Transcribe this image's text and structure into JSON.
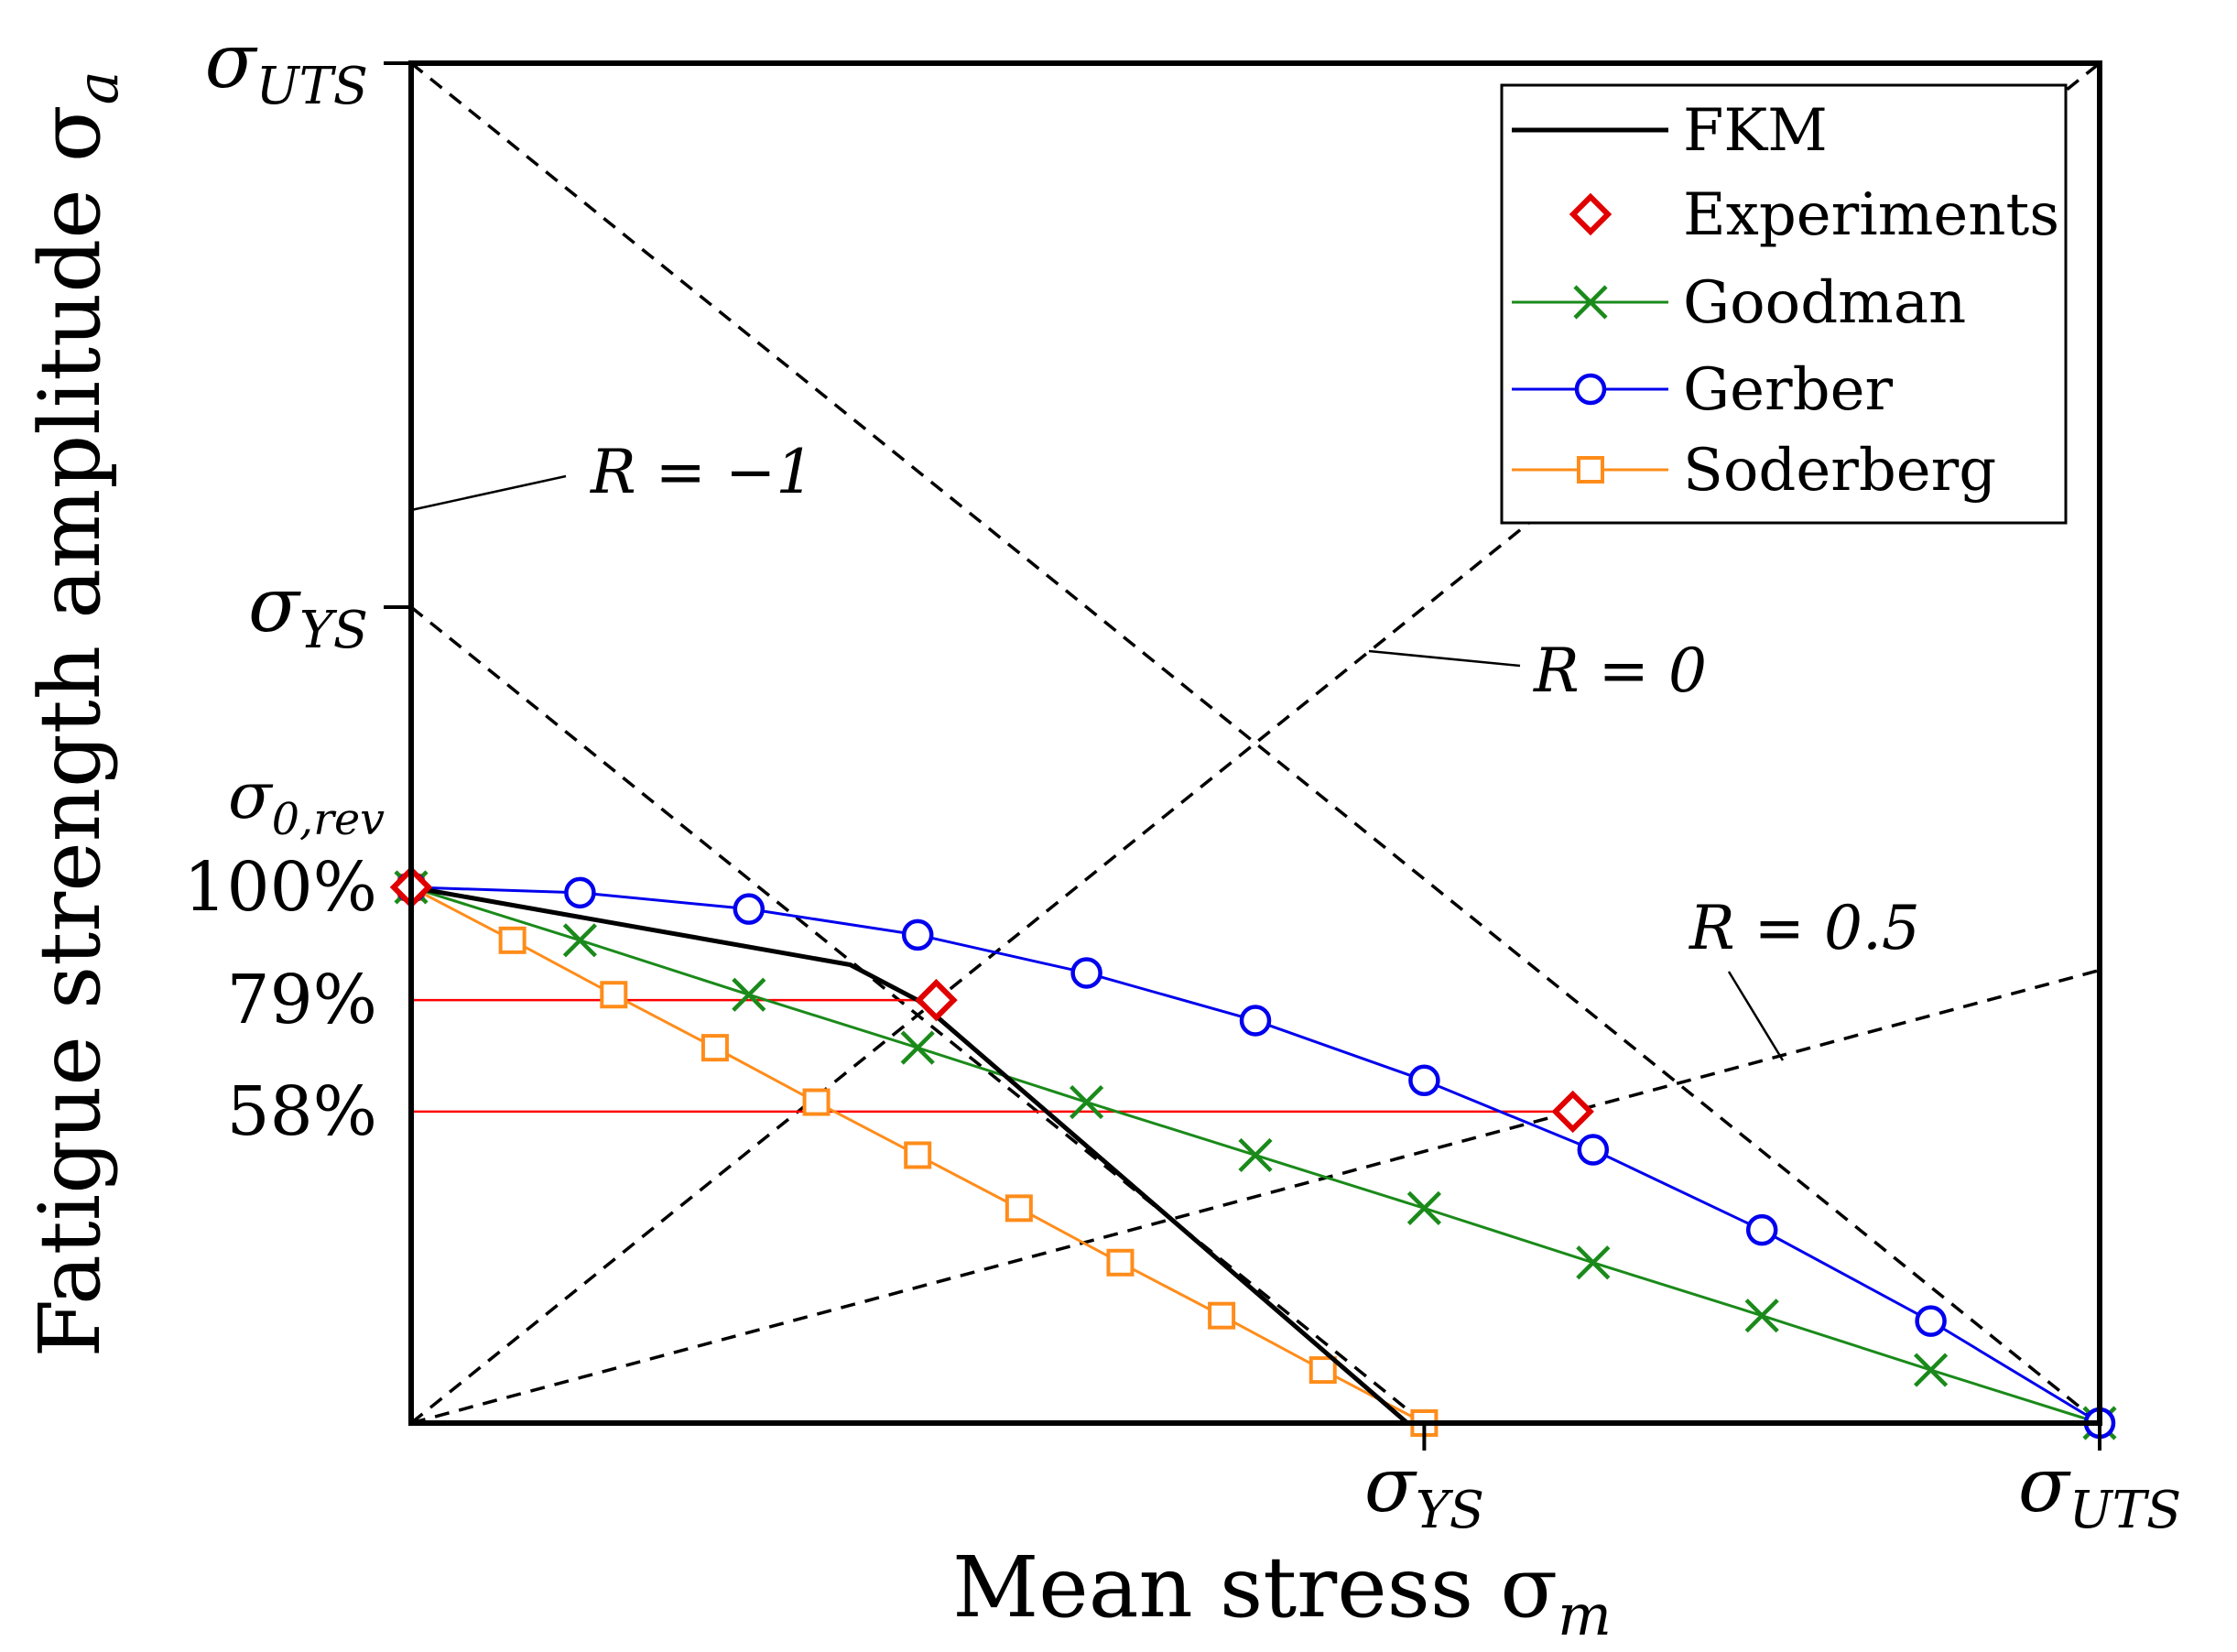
{
  "chart_data": {
    "type": "line",
    "title": "",
    "xlabel": "Mean stress σ",
    "xlabel_sub": "m",
    "ylabel": "Fatigue strength amplitude σ",
    "ylabel_sub": "a",
    "x_range": [
      0,
      1
    ],
    "y_range": [
      0,
      1
    ],
    "x_ticks": [
      {
        "value": 0.6,
        "symbol": "σ",
        "sub": "YS"
      },
      {
        "value": 1.0,
        "symbol": "σ",
        "sub": "UTS"
      }
    ],
    "y_ticks": [
      {
        "value": 0.6,
        "symbol": "σ",
        "sub": "YS"
      },
      {
        "value": 1.0,
        "symbol": "σ",
        "sub": "UTS"
      }
    ],
    "y_pct_heading": {
      "symbol": "σ",
      "sub": "0,rev"
    },
    "y_pct_labels": [
      {
        "value": 0.394,
        "label": "100%"
      },
      {
        "value": 0.311,
        "label": "79%"
      },
      {
        "value": 0.229,
        "label": "58%"
      }
    ],
    "ratio_lines": [
      {
        "label": "R = −1",
        "x": [
          0,
          0
        ],
        "y": [
          0,
          1
        ]
      },
      {
        "label": "R = 0",
        "x": [
          0,
          0.5,
          1
        ],
        "y": [
          0,
          0.5,
          1
        ]
      },
      {
        "label": "R = 0.5",
        "x": [
          0,
          1
        ],
        "y": [
          0,
          0.333
        ]
      }
    ],
    "yield_lines": [
      {
        "x": [
          0,
          1
        ],
        "y": [
          1,
          0
        ]
      },
      {
        "x": [
          0,
          0.6
        ],
        "y": [
          0.6,
          0
        ]
      }
    ],
    "series": [
      {
        "name": "FKM",
        "color": "#000000",
        "marker": "none",
        "x": [
          0,
          0.26,
          0.3,
          0.59
        ],
        "y": [
          0.394,
          0.337,
          0.311,
          0
        ]
      },
      {
        "name": "Experiments",
        "color": "#e00000",
        "marker": "diamond",
        "x": [
          0,
          0.311,
          0.688
        ],
        "y": [
          0.394,
          0.311,
          0.229
        ]
      },
      {
        "name": "Goodman",
        "color": "#1a8a1a",
        "marker": "x",
        "x": [
          0,
          0.1,
          0.2,
          0.3,
          0.4,
          0.5,
          0.6,
          0.7,
          0.8,
          0.9,
          1.0
        ],
        "y": [
          0.394,
          0.355,
          0.315,
          0.276,
          0.236,
          0.197,
          0.158,
          0.118,
          0.079,
          0.039,
          0
        ]
      },
      {
        "name": "Gerber",
        "color": "#0000ee",
        "marker": "circle",
        "x": [
          0,
          0.1,
          0.2,
          0.3,
          0.4,
          0.5,
          0.6,
          0.7,
          0.8,
          0.9,
          1.0
        ],
        "y": [
          0.394,
          0.39,
          0.378,
          0.359,
          0.331,
          0.296,
          0.252,
          0.201,
          0.142,
          0.075,
          0
        ]
      },
      {
        "name": "Soderberg",
        "color": "#ff8c1a",
        "marker": "square",
        "x": [
          0,
          0.06,
          0.12,
          0.18,
          0.24,
          0.3,
          0.36,
          0.42,
          0.48,
          0.54,
          0.6
        ],
        "y": [
          0.394,
          0.355,
          0.315,
          0.276,
          0.236,
          0.197,
          0.158,
          0.118,
          0.079,
          0.039,
          0
        ]
      }
    ],
    "reference_lines": [
      {
        "color": "#ff0000",
        "y": 0.311,
        "x": [
          0,
          0.311
        ]
      },
      {
        "color": "#ff0000",
        "y": 0.229,
        "x": [
          0,
          0.688
        ]
      }
    ],
    "legend": {
      "position": "top-right"
    }
  }
}
